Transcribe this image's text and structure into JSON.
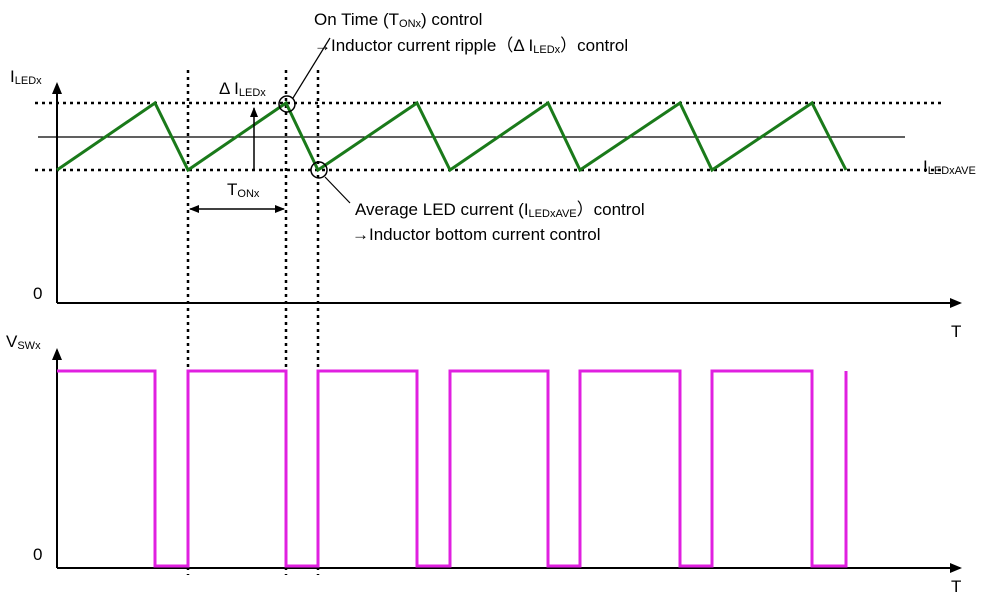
{
  "colors": {
    "inductor_current": "#1a7a1a",
    "switch_voltage": "#e020e0",
    "axes": "#000000"
  },
  "top_plot": {
    "y_axis_label": {
      "main": "I",
      "sub": "LEDx"
    },
    "x_axis_label": "T",
    "zero_label": "0",
    "average_label": {
      "main": "I",
      "sub": "LEDxAVE"
    },
    "ripple_label": {
      "prefix": "Δ I",
      "sub": "LEDx"
    },
    "ton_label": {
      "main": "T",
      "sub": "ONx"
    }
  },
  "bottom_plot": {
    "y_axis_label": {
      "main": "V",
      "sub": "SWx"
    },
    "x_axis_label": "T",
    "zero_label": "0"
  },
  "annotations": {
    "on_time": {
      "line1_prefix": "On Time (T",
      "line1_sub": "ONx",
      "line1_suffix": ") control",
      "line2_prefix": "→Inductor current ripple（Δ I",
      "line2_sub": "LEDx",
      "line2_suffix": "）control"
    },
    "average": {
      "line1_prefix": "Average LED current (I",
      "line1_sub": "LEDxAVE",
      "line1_suffix": "）control",
      "line2": "→Inductor bottom current control"
    }
  }
}
